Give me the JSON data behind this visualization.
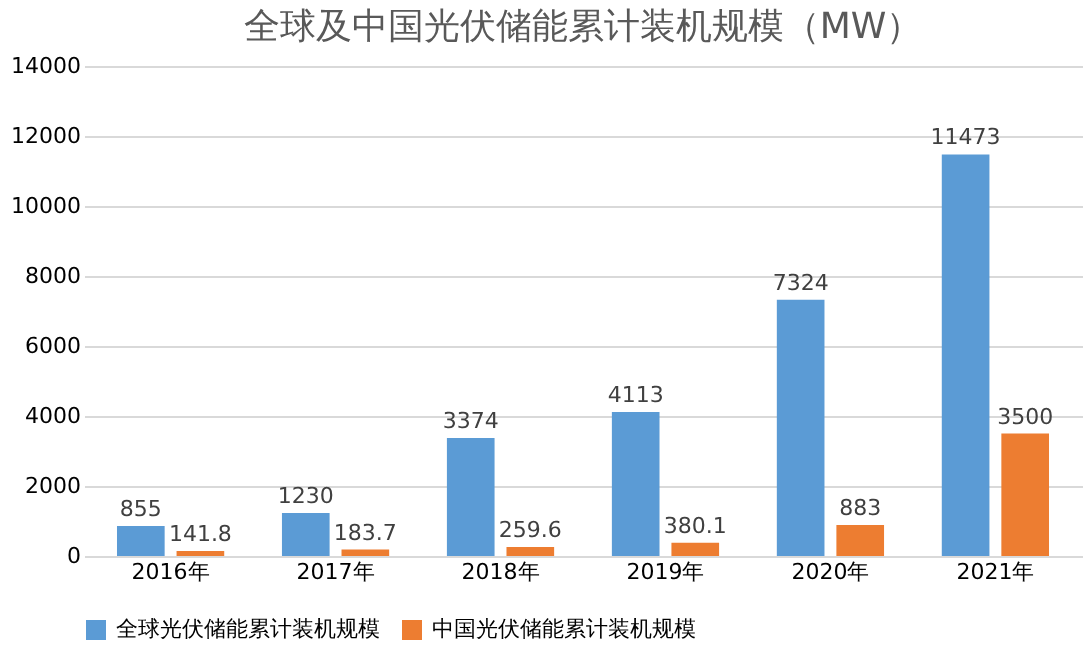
{
  "chart_data": {
    "type": "bar",
    "title": "全球及中国光伏储能累计装机规模（MW）",
    "categories": [
      "2016年",
      "2017年",
      "2018年",
      "2019年",
      "2020年",
      "2021年"
    ],
    "series": [
      {
        "name": "全球光伏储能累计装机规模",
        "color": "#5b9bd5",
        "values": [
          855,
          1230,
          3374,
          4113,
          7324,
          11473
        ]
      },
      {
        "name": "中国光伏储能累计装机规模",
        "color": "#ed7d31",
        "values": [
          141.8,
          183.7,
          259.6,
          380.1,
          883,
          3500
        ]
      }
    ],
    "ylim": [
      0,
      14000
    ],
    "yticks": [
      0,
      2000,
      4000,
      6000,
      8000,
      10000,
      12000,
      14000
    ],
    "grid": "y",
    "legend": "bottom",
    "data_labels": true
  }
}
